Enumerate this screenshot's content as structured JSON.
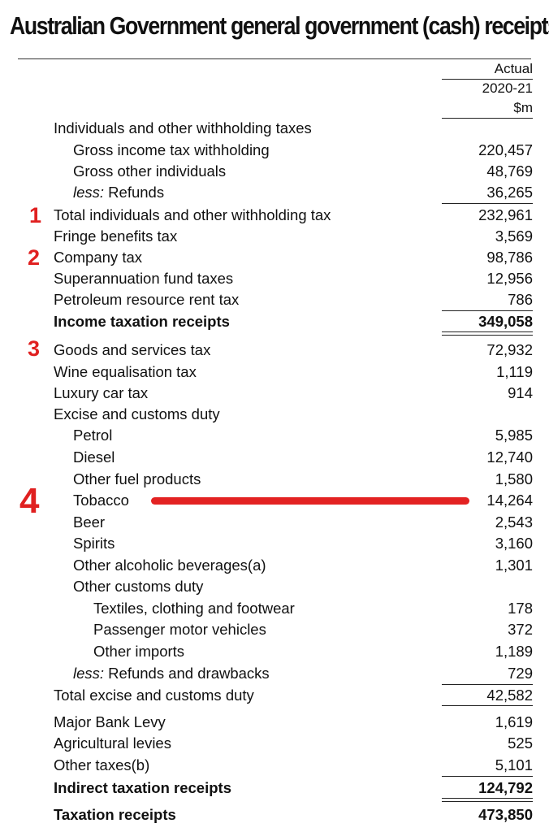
{
  "title": "Australian Government general government (cash) receipts",
  "header": {
    "line1": "Actual",
    "line2": "2020-21",
    "line3": "$m"
  },
  "rows": {
    "r0": {
      "label": "Individuals and other withholding taxes",
      "value": ""
    },
    "r1": {
      "label": "Gross income tax withholding",
      "value": "220,457"
    },
    "r2": {
      "label": "Gross other individuals",
      "value": "48,769"
    },
    "r3": {
      "label_prefix": "less:",
      "label": " Refunds",
      "value": "36,265"
    },
    "r4": {
      "label": "Total individuals and other withholding tax",
      "value": "232,961"
    },
    "r5": {
      "label": "Fringe benefits tax",
      "value": "3,569"
    },
    "r6": {
      "label": "Company tax",
      "value": "98,786"
    },
    "r7": {
      "label": "Superannuation fund taxes",
      "value": "12,956"
    },
    "r8": {
      "label": "Petroleum resource rent tax",
      "value": "786"
    },
    "r9": {
      "label": "Income taxation receipts",
      "value": "349,058"
    },
    "r10": {
      "label": "Goods and services tax",
      "value": "72,932"
    },
    "r11": {
      "label": "Wine equalisation tax",
      "value": "1,119"
    },
    "r12": {
      "label": "Luxury car tax",
      "value": "914"
    },
    "r13": {
      "label": "Excise and customs duty",
      "value": ""
    },
    "r14": {
      "label": "Petrol",
      "value": "5,985"
    },
    "r15": {
      "label": "Diesel",
      "value": "12,740"
    },
    "r16": {
      "label": "Other fuel products",
      "value": "1,580"
    },
    "r17": {
      "label": "Tobacco",
      "value": "14,264"
    },
    "r18": {
      "label": "Beer",
      "value": "2,543"
    },
    "r19": {
      "label": "Spirits",
      "value": "3,160"
    },
    "r20": {
      "label": "Other alcoholic beverages(a)",
      "value": "1,301"
    },
    "r21": {
      "label": "Other customs duty",
      "value": ""
    },
    "r22": {
      "label": "Textiles, clothing and footwear",
      "value": "178"
    },
    "r23": {
      "label": "Passenger motor vehicles",
      "value": "372"
    },
    "r24": {
      "label": "Other imports",
      "value": "1,189"
    },
    "r25": {
      "label_prefix": "less:",
      "label": " Refunds and drawbacks",
      "value": "729"
    },
    "r26": {
      "label": "Total excise and customs duty",
      "value": "42,582"
    },
    "r27": {
      "label": "Major Bank Levy",
      "value": "1,619"
    },
    "r28": {
      "label": "Agricultural levies",
      "value": "525"
    },
    "r29": {
      "label": "Other taxes(b)",
      "value": "5,101"
    },
    "r30": {
      "label": "Indirect taxation receipts",
      "value": "124,792"
    },
    "r31": {
      "label": "Taxation receipts",
      "value": "473,850"
    }
  },
  "markers": {
    "m1": "1",
    "m2": "2",
    "m3": "3",
    "m4": "4"
  },
  "colors": {
    "marker": "#e02020",
    "text": "#111111",
    "background": "#ffffff"
  }
}
